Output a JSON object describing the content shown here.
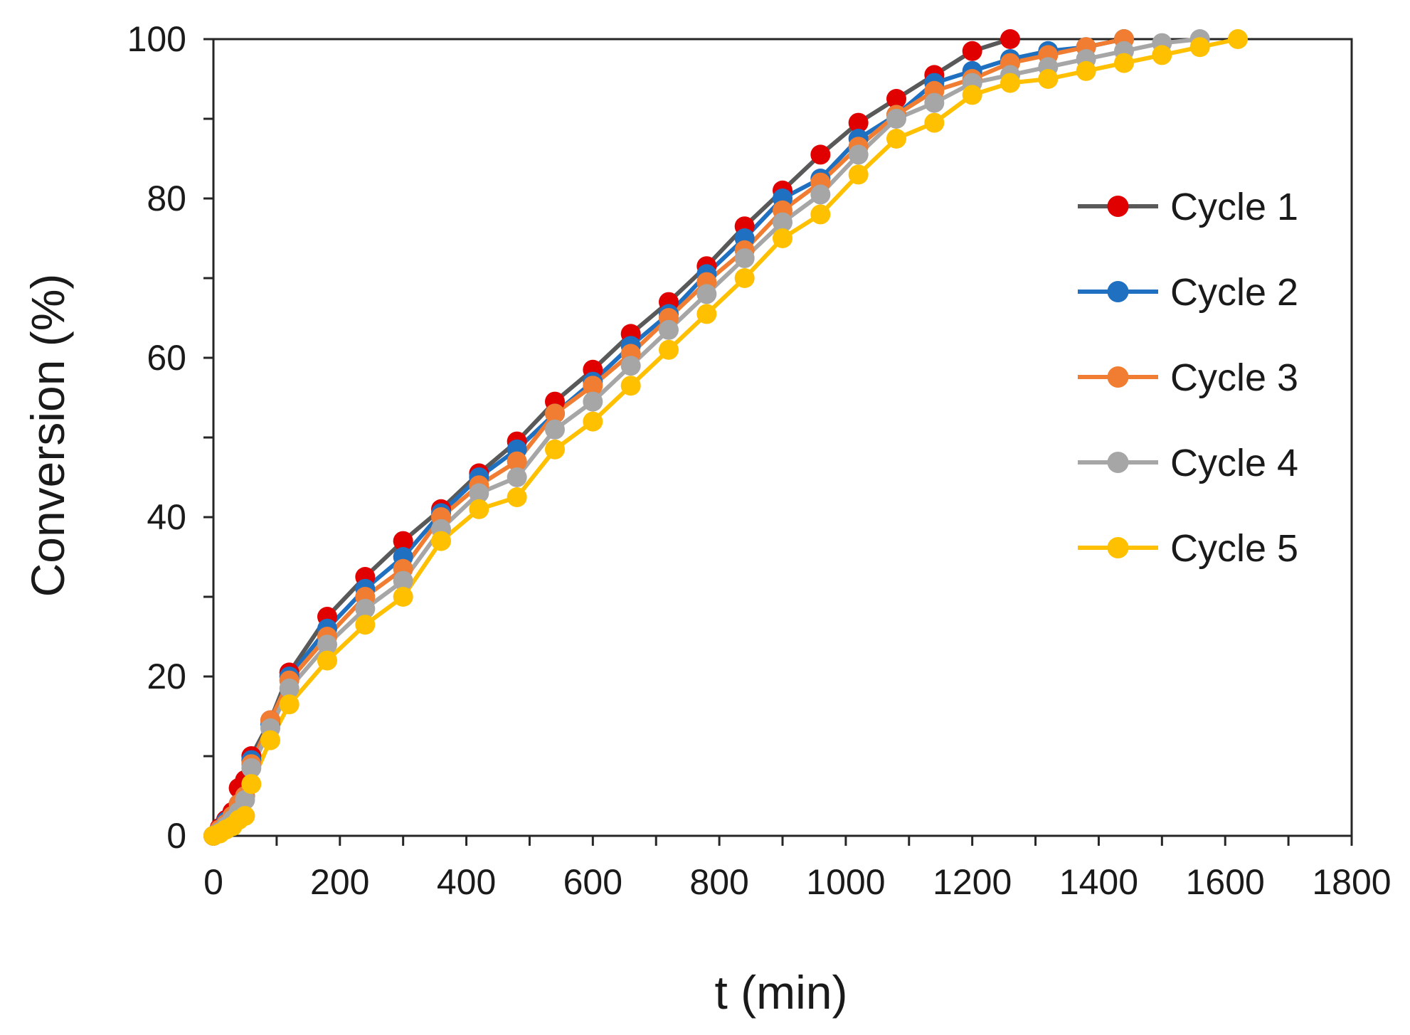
{
  "chart_data": {
    "type": "line",
    "title": "",
    "xlabel": "t (min)",
    "ylabel": "Conversion (%)",
    "xlim": [
      0,
      1800
    ],
    "ylim": [
      0,
      100
    ],
    "xticks": [
      0,
      200,
      400,
      600,
      800,
      1000,
      1200,
      1400,
      1600,
      1800
    ],
    "yticks": [
      0,
      20,
      40,
      60,
      80,
      100
    ],
    "grid": false,
    "legend_position": "right",
    "series": [
      {
        "name": "Cycle 1",
        "line_color": "#595959",
        "marker_color": "#e00000",
        "x": [
          0,
          10,
          20,
          30,
          40,
          50,
          60,
          90,
          120,
          180,
          240,
          300,
          360,
          420,
          480,
          540,
          600,
          660,
          720,
          780,
          840,
          900,
          960,
          1020,
          1080,
          1140,
          1200,
          1260
        ],
        "y": [
          0,
          1,
          2,
          3,
          6,
          7,
          10,
          14.5,
          20.5,
          27.5,
          32.5,
          37,
          41,
          45.5,
          49.5,
          54.5,
          58.5,
          63,
          67,
          71.5,
          76.5,
          81,
          85.5,
          89.5,
          92.5,
          95.5,
          98.5,
          100
        ]
      },
      {
        "name": "Cycle 2",
        "line_color": "#1f70c1",
        "marker_color": "#1f70c1",
        "x": [
          0,
          10,
          20,
          30,
          40,
          50,
          60,
          90,
          120,
          180,
          240,
          300,
          360,
          420,
          480,
          540,
          600,
          660,
          720,
          780,
          840,
          900,
          960,
          1020,
          1080,
          1140,
          1200,
          1260,
          1320,
          1380,
          1440
        ],
        "y": [
          0,
          0.8,
          1.8,
          2.5,
          4,
          5,
          9.5,
          14,
          20,
          26,
          31,
          35,
          40.5,
          45,
          48.5,
          53,
          57,
          61.5,
          65.5,
          70.5,
          75,
          80,
          82.5,
          87.5,
          90.5,
          94.5,
          96,
          97.5,
          98.5,
          99,
          100
        ]
      },
      {
        "name": "Cycle 3",
        "line_color": "#f07d32",
        "marker_color": "#f07d32",
        "x": [
          0,
          10,
          20,
          30,
          40,
          50,
          60,
          90,
          120,
          180,
          240,
          300,
          360,
          420,
          480,
          540,
          600,
          660,
          720,
          780,
          840,
          900,
          960,
          1020,
          1080,
          1140,
          1200,
          1260,
          1320,
          1380,
          1440
        ],
        "y": [
          0,
          0.8,
          1.5,
          2.5,
          4,
          5,
          9,
          14.5,
          19.5,
          25,
          30,
          33.5,
          40,
          44,
          47,
          53,
          56.5,
          60.5,
          65,
          69.5,
          73.5,
          78.5,
          82,
          86.5,
          90.5,
          93.5,
          95,
          97,
          98,
          99,
          100
        ]
      },
      {
        "name": "Cycle 4",
        "line_color": "#a6a6a6",
        "marker_color": "#a6a6a6",
        "x": [
          0,
          10,
          20,
          30,
          40,
          50,
          60,
          90,
          120,
          180,
          240,
          300,
          360,
          420,
          480,
          540,
          600,
          660,
          720,
          780,
          840,
          900,
          960,
          1020,
          1080,
          1140,
          1200,
          1260,
          1320,
          1380,
          1440,
          1500,
          1560
        ],
        "y": [
          0,
          0.5,
          1.2,
          2,
          3,
          4.5,
          8.5,
          13.5,
          18.5,
          24,
          28.5,
          32,
          38.5,
          43,
          45,
          51,
          54.5,
          59,
          63.5,
          68,
          72.5,
          77,
          80.5,
          85.5,
          90,
          92,
          94.5,
          95.5,
          96.5,
          97.5,
          98.5,
          99.5,
          100
        ]
      },
      {
        "name": "Cycle 5",
        "line_color": "#ffc000",
        "marker_color": "#ffc000",
        "x": [
          0,
          10,
          20,
          30,
          40,
          50,
          60,
          90,
          120,
          180,
          240,
          300,
          360,
          420,
          480,
          540,
          600,
          660,
          720,
          780,
          840,
          900,
          960,
          1020,
          1080,
          1140,
          1200,
          1260,
          1320,
          1380,
          1440,
          1500,
          1560,
          1620
        ],
        "y": [
          0,
          0.3,
          0.8,
          1.2,
          2,
          2.5,
          6.5,
          12,
          16.5,
          22,
          26.5,
          30,
          37,
          41,
          42.5,
          48.5,
          52,
          56.5,
          61,
          65.5,
          70,
          75,
          78,
          83,
          87.5,
          89.5,
          93,
          94.5,
          95,
          96,
          97,
          98,
          99,
          100
        ]
      }
    ]
  }
}
